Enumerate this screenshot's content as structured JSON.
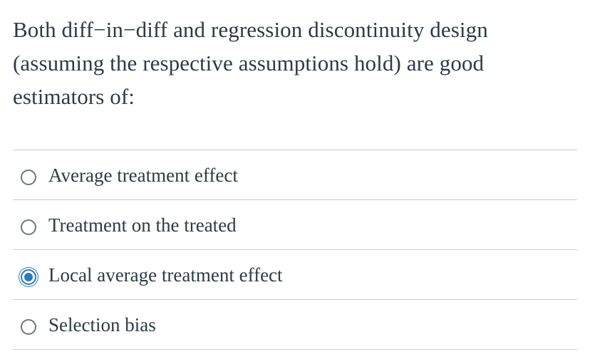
{
  "question": {
    "text": "Both diff−in−diff and regression discontinuity design (assuming the respective assumptions hold) are good estimators of:"
  },
  "answers": [
    {
      "label": "Average treatment effect",
      "selected": false
    },
    {
      "label": "Treatment on the treated",
      "selected": false
    },
    {
      "label": "Local average treatment effect",
      "selected": true
    },
    {
      "label": "Selection bias",
      "selected": false
    }
  ],
  "colors": {
    "accent": "#2b7abc",
    "text": "#2d3b45",
    "divider": "#c7cdd1",
    "radio_border": "#6b7780"
  }
}
